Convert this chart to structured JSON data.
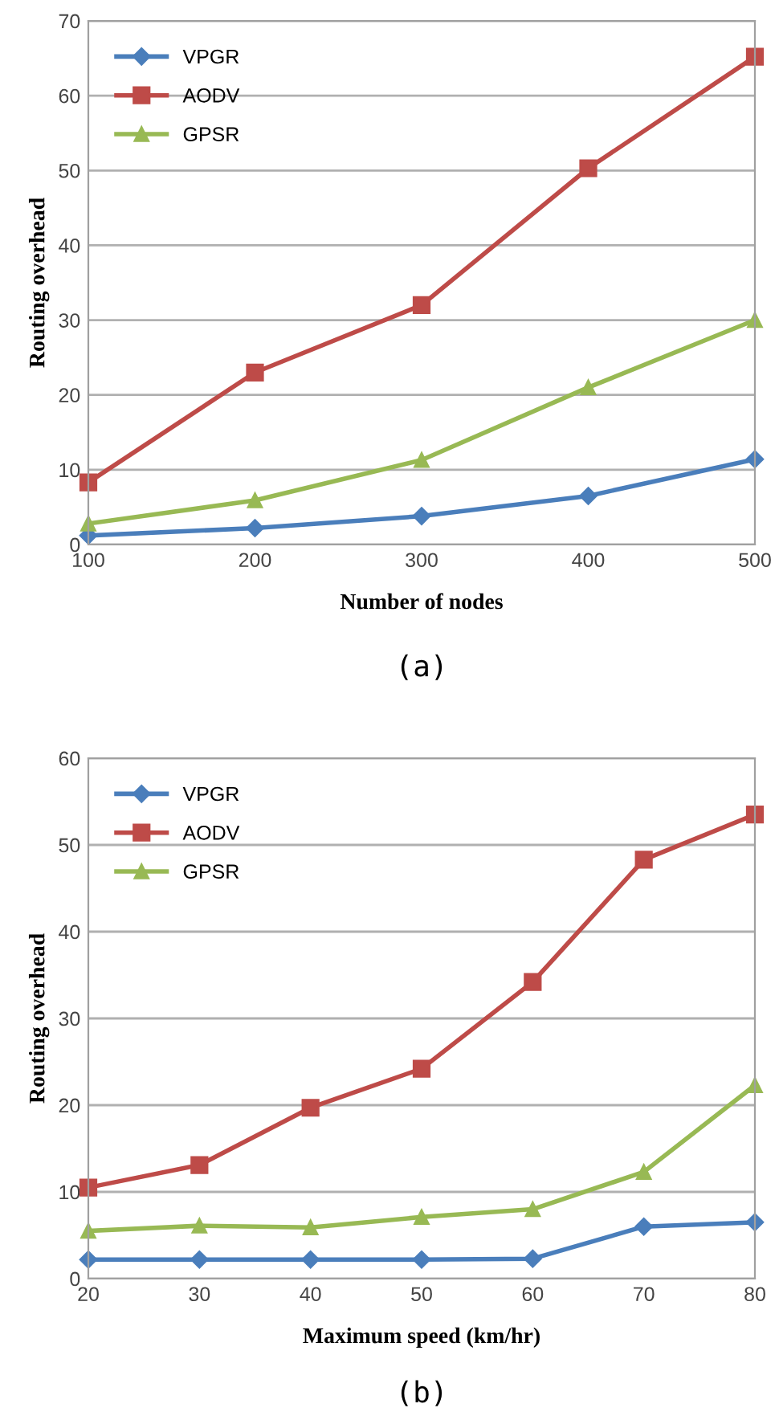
{
  "chart_data": [
    {
      "type": "line",
      "xlabel": "Number of nodes",
      "ylabel": "Routing overhead",
      "annotations": [
        "(a)"
      ],
      "x": [
        100,
        200,
        300,
        400,
        500
      ],
      "xlim": [
        100,
        500
      ],
      "xticks": [
        100,
        200,
        300,
        400,
        500
      ],
      "ylim": [
        0,
        70
      ],
      "yticks": [
        0,
        10,
        20,
        30,
        40,
        50,
        60,
        70
      ],
      "grid": "y",
      "legend": "top left",
      "series": [
        {
          "name": "VPGR",
          "color": "#4a7ebb",
          "marker": "diamond",
          "values": [
            1.2,
            2.2,
            3.8,
            6.5,
            11.4
          ]
        },
        {
          "name": "AODV",
          "color": "#be4b48",
          "marker": "square",
          "values": [
            8.3,
            23,
            32,
            50.3,
            65.2
          ]
        },
        {
          "name": "GPSR",
          "color": "#98b954",
          "marker": "triangle",
          "values": [
            2.8,
            5.9,
            11.3,
            21,
            30
          ]
        }
      ]
    },
    {
      "type": "line",
      "xlabel": "Maximum speed (km/hr)",
      "ylabel": "Routing overhead",
      "annotations": [
        "(b)"
      ],
      "x": [
        20,
        30,
        40,
        50,
        60,
        70,
        80
      ],
      "xlim": [
        20,
        80
      ],
      "xticks": [
        20,
        30,
        40,
        50,
        60,
        70,
        80
      ],
      "ylim": [
        0,
        60
      ],
      "yticks": [
        0,
        10,
        20,
        30,
        40,
        50,
        60
      ],
      "grid": "y",
      "legend": "top left",
      "series": [
        {
          "name": "VPGR",
          "color": "#4a7ebb",
          "marker": "diamond",
          "values": [
            2.2,
            2.2,
            2.2,
            2.2,
            2.3,
            6,
            6.5
          ]
        },
        {
          "name": "AODV",
          "color": "#be4b48",
          "marker": "square",
          "values": [
            10.5,
            13.1,
            19.7,
            24.2,
            34.2,
            48.3,
            53.5
          ]
        },
        {
          "name": "GPSR",
          "color": "#98b954",
          "marker": "triangle",
          "values": [
            5.5,
            6.1,
            5.9,
            7.1,
            8,
            12.3,
            22.3
          ]
        }
      ]
    }
  ]
}
